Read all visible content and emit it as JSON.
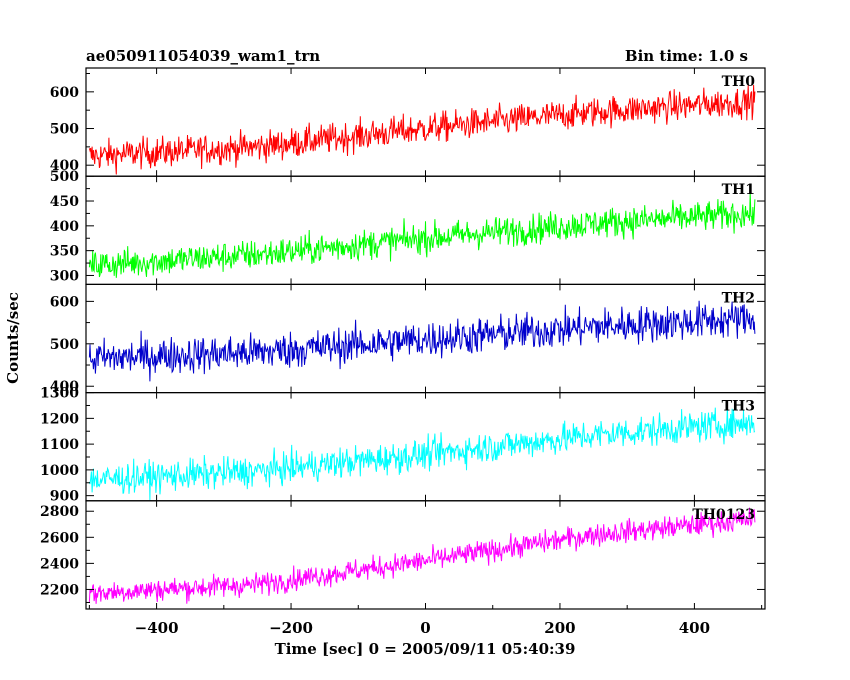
{
  "header": {
    "title": "ae050911054039_wam1_trn",
    "bin_time": "Bin time: 1.0 s"
  },
  "chart_data": {
    "type": "line",
    "xlabel": "Time [sec] 0 = 2005/09/11 05:40:39",
    "ylabel": "Counts/sec",
    "xlim": [
      -505,
      505
    ],
    "x_ticks": [
      -400,
      -200,
      0,
      200,
      400
    ],
    "x_tick_labels": [
      "−400",
      "−200",
      "0",
      "200",
      "400"
    ],
    "x_range": [
      -500,
      490
    ],
    "panels": [
      {
        "name": "TH0",
        "color": "#ff0000",
        "ylim": [
          370,
          665
        ],
        "y_ticks": [
          400,
          500,
          600
        ],
        "y_tick_labels": [
          "400",
          "500",
          "600"
        ],
        "trend": [
          [
            -500,
            425
          ],
          [
            -250,
            450
          ],
          [
            0,
            500
          ],
          [
            250,
            545
          ],
          [
            490,
            575
          ]
        ],
        "noise": 38
      },
      {
        "name": "TH1",
        "color": "#00ff00",
        "ylim": [
          282,
          500
        ],
        "y_ticks": [
          300,
          350,
          400,
          450,
          500
        ],
        "y_tick_labels": [
          "300",
          "350",
          "400",
          "450",
          "500"
        ],
        "trend": [
          [
            -500,
            320
          ],
          [
            -250,
            342
          ],
          [
            0,
            375
          ],
          [
            250,
            405
          ],
          [
            490,
            425
          ]
        ],
        "noise": 28
      },
      {
        "name": "TH2",
        "color": "#0000cc",
        "ylim": [
          385,
          640
        ],
        "y_ticks": [
          400,
          500,
          600
        ],
        "y_tick_labels": [
          "400",
          "500",
          "600"
        ],
        "trend": [
          [
            -500,
            465
          ],
          [
            -250,
            480
          ],
          [
            0,
            510
          ],
          [
            250,
            540
          ],
          [
            490,
            560
          ]
        ],
        "noise": 40
      },
      {
        "name": "TH3",
        "color": "#00ffff",
        "ylim": [
          880,
          1300
        ],
        "y_ticks": [
          900,
          1000,
          1100,
          1200,
          1300
        ],
        "y_tick_labels": [
          "900",
          "1000",
          "1100",
          "1200",
          "1300"
        ],
        "trend": [
          [
            -500,
            960
          ],
          [
            -250,
            995
          ],
          [
            0,
            1060
          ],
          [
            250,
            1135
          ],
          [
            490,
            1185
          ]
        ],
        "noise": 55
      },
      {
        "name": "TH0123",
        "color": "#ff00ff",
        "ylim": [
          2050,
          2880
        ],
        "y_ticks": [
          2200,
          2400,
          2600,
          2800
        ],
        "y_tick_labels": [
          "2200",
          "2400",
          "2600",
          "2800"
        ],
        "trend": [
          [
            -500,
            2170
          ],
          [
            -250,
            2240
          ],
          [
            0,
            2420
          ],
          [
            250,
            2620
          ],
          [
            490,
            2740
          ]
        ],
        "noise": 80
      }
    ]
  }
}
